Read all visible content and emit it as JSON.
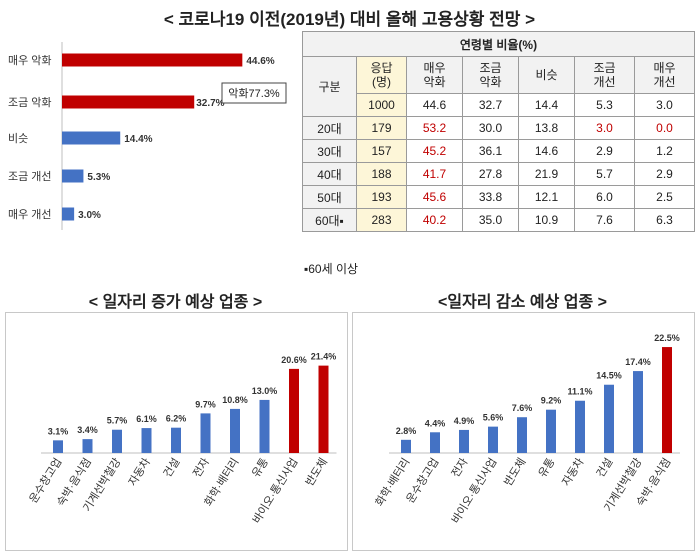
{
  "main_title": "< 코로나19 이전(2019년) 대비 올해 고용상황 전망 >",
  "colors": {
    "red": "#c00000",
    "blue": "#4472c4"
  },
  "chart_data": [
    {
      "type": "bar",
      "orientation": "horizontal",
      "categories": [
        "매우 악화",
        "조금 악화",
        "비슷",
        "조금 개선",
        "매우 개선"
      ],
      "values": [
        44.6,
        32.7,
        14.4,
        5.3,
        3.0
      ],
      "value_labels": [
        "44.6%",
        "32.7%",
        "14.4%",
        "5.3%",
        "3.0%"
      ],
      "bar_colors": [
        "#c00000",
        "#c00000",
        "#4472c4",
        "#4472c4",
        "#4472c4"
      ],
      "annotation": "악화77.3%",
      "xlim": [
        0,
        46
      ]
    },
    {
      "type": "bar",
      "title": "< 일자리 증가 예상 업종 >",
      "categories": [
        "운수창고업",
        "숙박·음식점",
        "기계선박철강",
        "자동차",
        "건설",
        "전자",
        "화학·배터리",
        "유통",
        "바이오·통신사업",
        "반도체"
      ],
      "values": [
        3.1,
        3.4,
        5.7,
        6.1,
        6.2,
        9.7,
        10.8,
        13.0,
        20.6,
        21.4
      ],
      "value_labels": [
        "3.1%",
        "3.4%",
        "5.7%",
        "6.1%",
        "6.2%",
        "9.7%",
        "10.8%",
        "13.0%",
        "20.6%",
        "21.4%"
      ],
      "bar_colors": [
        "#4472c4",
        "#4472c4",
        "#4472c4",
        "#4472c4",
        "#4472c4",
        "#4472c4",
        "#4472c4",
        "#4472c4",
        "#c00000",
        "#c00000"
      ],
      "ylim": [
        0,
        24
      ]
    },
    {
      "type": "bar",
      "title": "<일자리 감소 예상 업종 >",
      "categories": [
        "화학·배터리",
        "운수창고업",
        "전자",
        "바이오·통신사업",
        "반도체",
        "유통",
        "자동차",
        "건설",
        "기계선박철강",
        "숙박·음식점"
      ],
      "values": [
        2.8,
        4.4,
        4.9,
        5.6,
        7.6,
        9.2,
        11.1,
        14.5,
        17.4,
        22.5
      ],
      "value_labels": [
        "2.8%",
        "4.4%",
        "4.9%",
        "5.6%",
        "7.6%",
        "9.2%",
        "11.1%",
        "14.5%",
        "17.4%",
        "22.5%"
      ],
      "bar_colors": [
        "#4472c4",
        "#4472c4",
        "#4472c4",
        "#4472c4",
        "#4472c4",
        "#4472c4",
        "#4472c4",
        "#4472c4",
        "#4472c4",
        "#c00000"
      ],
      "ylim": [
        0,
        24
      ]
    }
  ],
  "table": {
    "caption": "연령별 비율(%)",
    "headers": [
      "구분",
      "응답\n(명)",
      "매우\n악화",
      "조금\n악화",
      "비슷",
      "조금\n개선",
      "매우\n개선"
    ],
    "total_row": [
      "1000",
      "44.6",
      "32.7",
      "14.4",
      "5.3",
      "3.0"
    ],
    "rows": [
      {
        "label": "20대",
        "cells": [
          "179",
          "53.2",
          "30.0",
          "13.8",
          "3.0",
          "0.0"
        ]
      },
      {
        "label": "30대",
        "cells": [
          "157",
          "45.2",
          "36.1",
          "14.6",
          "2.9",
          "1.2"
        ]
      },
      {
        "label": "40대",
        "cells": [
          "188",
          "41.7",
          "27.8",
          "21.9",
          "5.7",
          "2.9"
        ]
      },
      {
        "label": "50대",
        "cells": [
          "193",
          "45.6",
          "33.8",
          "12.1",
          "6.0",
          "2.5"
        ]
      },
      {
        "label": "60대▪",
        "cells": [
          "283",
          "40.2",
          "35.0",
          "10.9",
          "7.6",
          "6.3"
        ]
      }
    ],
    "red_cells": [
      [
        0,
        1
      ],
      [
        0,
        4
      ],
      [
        0,
        5
      ],
      [
        1,
        1
      ],
      [
        2,
        1
      ],
      [
        3,
        1
      ],
      [
        4,
        1
      ]
    ],
    "footnote": "▪60세 이상"
  }
}
